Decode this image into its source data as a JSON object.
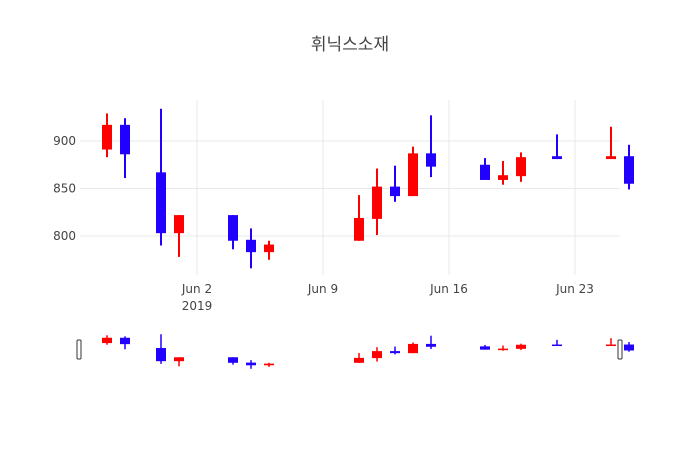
{
  "chart_data": {
    "type": "candlestick",
    "title": "휘닉스소재",
    "xlabel": "",
    "ylabel": "",
    "ylim": [
      760,
      945
    ],
    "y_ticks": [
      800,
      850,
      900
    ],
    "x_ticks": [
      "Jun 2\n2019",
      "Jun 9",
      "Jun 16",
      "Jun 23"
    ],
    "grid": true,
    "rangeslider": true,
    "increasing_color": "#ff0000",
    "decreasing_color": "#2200ff",
    "candles": [
      {
        "date": "2019-05-28",
        "open": 891,
        "high": 929,
        "low": 883,
        "close": 917
      },
      {
        "date": "2019-05-29",
        "open": 917,
        "high": 924,
        "low": 861,
        "close": 886
      },
      {
        "date": "2019-05-31",
        "open": 867,
        "high": 934,
        "low": 790,
        "close": 803
      },
      {
        "date": "2019-06-01",
        "open": 803,
        "high": 822,
        "low": 778,
        "close": 822
      },
      {
        "date": "2019-06-04",
        "open": 822,
        "high": 822,
        "low": 786,
        "close": 795
      },
      {
        "date": "2019-06-05",
        "open": 796,
        "high": 808,
        "low": 766,
        "close": 783
      },
      {
        "date": "2019-06-06",
        "open": 783,
        "high": 795,
        "low": 775,
        "close": 791
      },
      {
        "date": "2019-06-11",
        "open": 795,
        "high": 843,
        "low": 795,
        "close": 819
      },
      {
        "date": "2019-06-12",
        "open": 818,
        "high": 871,
        "low": 801,
        "close": 852
      },
      {
        "date": "2019-06-13",
        "open": 852,
        "high": 874,
        "low": 836,
        "close": 842
      },
      {
        "date": "2019-06-14",
        "open": 842,
        "high": 894,
        "low": 842,
        "close": 887
      },
      {
        "date": "2019-06-15",
        "open": 887,
        "high": 927,
        "low": 862,
        "close": 873
      },
      {
        "date": "2019-06-18",
        "open": 875,
        "high": 882,
        "low": 859,
        "close": 859
      },
      {
        "date": "2019-06-19",
        "open": 859,
        "high": 879,
        "low": 854,
        "close": 864
      },
      {
        "date": "2019-06-20",
        "open": 863,
        "high": 888,
        "low": 857,
        "close": 883
      },
      {
        "date": "2019-06-22",
        "open": 884,
        "high": 907,
        "low": 881,
        "close": 881
      },
      {
        "date": "2019-06-25",
        "open": 881,
        "high": 915,
        "low": 881,
        "close": 884
      },
      {
        "date": "2019-06-26",
        "open": 884,
        "high": 896,
        "low": 849,
        "close": 855
      }
    ]
  }
}
